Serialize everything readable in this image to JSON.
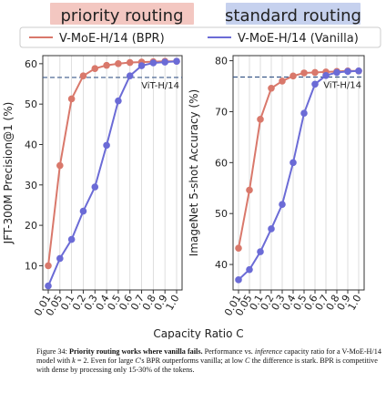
{
  "header": {
    "left_title": "priority routing",
    "left_title_color": "#f3c7c1",
    "right_title": "standard routing",
    "right_title_color": "#c6d1ee"
  },
  "legend": {
    "items": [
      {
        "label": "V-MoE-H/14 (BPR)",
        "color": "#d9786b"
      },
      {
        "label": "V-MoE-H/14 (Vanilla)",
        "color": "#6b6bd6"
      }
    ]
  },
  "xlabel": "Capacity Ratio C",
  "caption": {
    "prefix": "Figure 34: ",
    "bold": "Priority routing works where vanilla fails.",
    "part1": " Performance vs. ",
    "italic1": "inference",
    "part2": " capacity ratio for a V-MoE-H/14 model with ",
    "italic2": "k",
    "part3": " = 2. Even for large ",
    "italic3": "C",
    "part4": "'s BPR outperforms vanilla; at low ",
    "italic4": "C",
    "part5": " the difference is stark. BPR is competitive with dense by processing only 15-30% of the tokens."
  },
  "chart_data": [
    {
      "type": "line",
      "ylabel": "JFT-300M Precision@1 (%)",
      "categories": [
        "0.01",
        "0.05",
        "0.1",
        "0.2",
        "0.3",
        "0.4",
        "0.5",
        "0.6",
        "0.7",
        "0.8",
        "0.9",
        "1.0"
      ],
      "ylim": [
        4,
        62
      ],
      "yticks": [
        10,
        20,
        30,
        40,
        50,
        60
      ],
      "grid": "vertical",
      "reference": {
        "label": "ViT-H/14",
        "value": 56.6
      },
      "series": [
        {
          "name": "V-MoE-H/14 (BPR)",
          "color": "#d9786b",
          "values": [
            10.0,
            34.8,
            51.3,
            57.0,
            58.8,
            59.6,
            60.0,
            60.3,
            60.4,
            60.5,
            60.6,
            60.6
          ]
        },
        {
          "name": "V-MoE-H/14 (Vanilla)",
          "color": "#6b6bd6",
          "values": [
            5.0,
            11.8,
            16.5,
            23.5,
            29.5,
            39.8,
            50.8,
            57.0,
            59.5,
            60.2,
            60.4,
            60.6
          ]
        }
      ]
    },
    {
      "type": "line",
      "ylabel": "ImageNet 5-shot Accuracy (%)",
      "categories": [
        "0.01",
        "0.05",
        "0.1",
        "0.2",
        "0.3",
        "0.4",
        "0.5",
        "0.6",
        "0.7",
        "0.8",
        "0.9",
        "1.0"
      ],
      "ylim": [
        35,
        81
      ],
      "yticks": [
        40,
        50,
        60,
        70,
        80
      ],
      "grid": "vertical",
      "reference": {
        "label": "ViT-H/14",
        "value": 76.8
      },
      "series": [
        {
          "name": "V-MoE-H/14 (BPR)",
          "color": "#d9786b",
          "values": [
            43.2,
            54.6,
            68.5,
            74.6,
            76.0,
            77.0,
            77.6,
            77.7,
            77.8,
            77.9,
            78.0,
            78.0
          ]
        },
        {
          "name": "V-MoE-H/14 (Vanilla)",
          "color": "#6b6bd6",
          "values": [
            37.0,
            39.0,
            42.5,
            47.0,
            51.8,
            60.0,
            69.7,
            75.4,
            77.1,
            77.7,
            77.9,
            78.0
          ]
        }
      ]
    }
  ]
}
